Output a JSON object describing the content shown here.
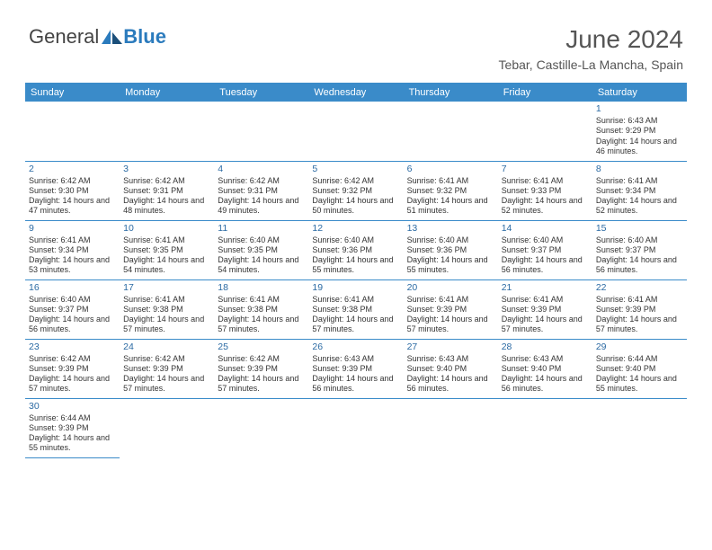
{
  "logo": {
    "text_general": "General",
    "text_blue": "Blue"
  },
  "title": "June 2024",
  "location": "Tebar, Castille-La Mancha, Spain",
  "colors": {
    "header_bg": "#3a8bc9",
    "header_text": "#ffffff",
    "border": "#3a8bc9",
    "daynum": "#2b6aa3",
    "body_text": "#333333",
    "logo_blue": "#2b7bbd",
    "logo_gray": "#444444"
  },
  "typography": {
    "title_fontsize": 28,
    "location_fontsize": 14,
    "header_fontsize": 11,
    "cell_fontsize": 9,
    "daynum_fontsize": 10.5
  },
  "day_headers": [
    "Sunday",
    "Monday",
    "Tuesday",
    "Wednesday",
    "Thursday",
    "Friday",
    "Saturday"
  ],
  "weeks": [
    [
      null,
      null,
      null,
      null,
      null,
      null,
      {
        "n": "1",
        "sr": "6:43 AM",
        "ss": "9:29 PM",
        "dl": "14 hours and 46 minutes."
      }
    ],
    [
      {
        "n": "2",
        "sr": "6:42 AM",
        "ss": "9:30 PM",
        "dl": "14 hours and 47 minutes."
      },
      {
        "n": "3",
        "sr": "6:42 AM",
        "ss": "9:31 PM",
        "dl": "14 hours and 48 minutes."
      },
      {
        "n": "4",
        "sr": "6:42 AM",
        "ss": "9:31 PM",
        "dl": "14 hours and 49 minutes."
      },
      {
        "n": "5",
        "sr": "6:42 AM",
        "ss": "9:32 PM",
        "dl": "14 hours and 50 minutes."
      },
      {
        "n": "6",
        "sr": "6:41 AM",
        "ss": "9:32 PM",
        "dl": "14 hours and 51 minutes."
      },
      {
        "n": "7",
        "sr": "6:41 AM",
        "ss": "9:33 PM",
        "dl": "14 hours and 52 minutes."
      },
      {
        "n": "8",
        "sr": "6:41 AM",
        "ss": "9:34 PM",
        "dl": "14 hours and 52 minutes."
      }
    ],
    [
      {
        "n": "9",
        "sr": "6:41 AM",
        "ss": "9:34 PM",
        "dl": "14 hours and 53 minutes."
      },
      {
        "n": "10",
        "sr": "6:41 AM",
        "ss": "9:35 PM",
        "dl": "14 hours and 54 minutes."
      },
      {
        "n": "11",
        "sr": "6:40 AM",
        "ss": "9:35 PM",
        "dl": "14 hours and 54 minutes."
      },
      {
        "n": "12",
        "sr": "6:40 AM",
        "ss": "9:36 PM",
        "dl": "14 hours and 55 minutes."
      },
      {
        "n": "13",
        "sr": "6:40 AM",
        "ss": "9:36 PM",
        "dl": "14 hours and 55 minutes."
      },
      {
        "n": "14",
        "sr": "6:40 AM",
        "ss": "9:37 PM",
        "dl": "14 hours and 56 minutes."
      },
      {
        "n": "15",
        "sr": "6:40 AM",
        "ss": "9:37 PM",
        "dl": "14 hours and 56 minutes."
      }
    ],
    [
      {
        "n": "16",
        "sr": "6:40 AM",
        "ss": "9:37 PM",
        "dl": "14 hours and 56 minutes."
      },
      {
        "n": "17",
        "sr": "6:41 AM",
        "ss": "9:38 PM",
        "dl": "14 hours and 57 minutes."
      },
      {
        "n": "18",
        "sr": "6:41 AM",
        "ss": "9:38 PM",
        "dl": "14 hours and 57 minutes."
      },
      {
        "n": "19",
        "sr": "6:41 AM",
        "ss": "9:38 PM",
        "dl": "14 hours and 57 minutes."
      },
      {
        "n": "20",
        "sr": "6:41 AM",
        "ss": "9:39 PM",
        "dl": "14 hours and 57 minutes."
      },
      {
        "n": "21",
        "sr": "6:41 AM",
        "ss": "9:39 PM",
        "dl": "14 hours and 57 minutes."
      },
      {
        "n": "22",
        "sr": "6:41 AM",
        "ss": "9:39 PM",
        "dl": "14 hours and 57 minutes."
      }
    ],
    [
      {
        "n": "23",
        "sr": "6:42 AM",
        "ss": "9:39 PM",
        "dl": "14 hours and 57 minutes."
      },
      {
        "n": "24",
        "sr": "6:42 AM",
        "ss": "9:39 PM",
        "dl": "14 hours and 57 minutes."
      },
      {
        "n": "25",
        "sr": "6:42 AM",
        "ss": "9:39 PM",
        "dl": "14 hours and 57 minutes."
      },
      {
        "n": "26",
        "sr": "6:43 AM",
        "ss": "9:39 PM",
        "dl": "14 hours and 56 minutes."
      },
      {
        "n": "27",
        "sr": "6:43 AM",
        "ss": "9:40 PM",
        "dl": "14 hours and 56 minutes."
      },
      {
        "n": "28",
        "sr": "6:43 AM",
        "ss": "9:40 PM",
        "dl": "14 hours and 56 minutes."
      },
      {
        "n": "29",
        "sr": "6:44 AM",
        "ss": "9:40 PM",
        "dl": "14 hours and 55 minutes."
      }
    ],
    [
      {
        "n": "30",
        "sr": "6:44 AM",
        "ss": "9:39 PM",
        "dl": "14 hours and 55 minutes."
      },
      null,
      null,
      null,
      null,
      null,
      null
    ]
  ],
  "labels": {
    "sunrise": "Sunrise: ",
    "sunset": "Sunset: ",
    "daylight": "Daylight: "
  }
}
